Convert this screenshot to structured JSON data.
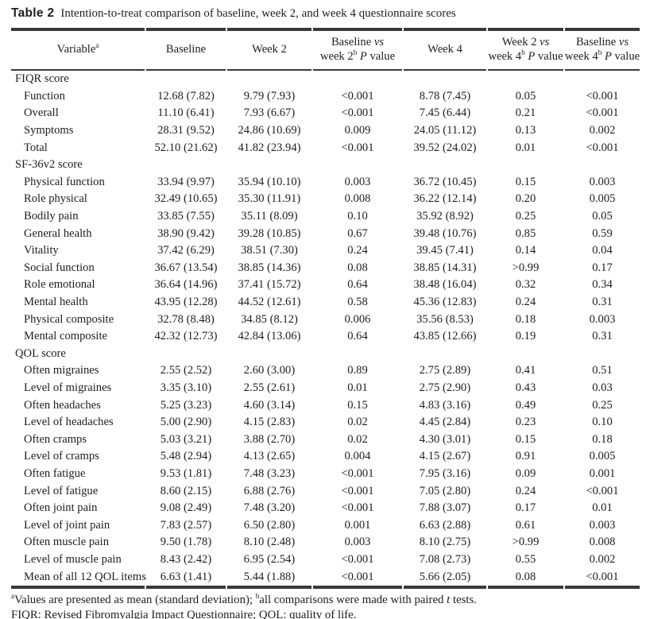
{
  "page": {
    "background_color": "#ffffff",
    "text_color": "#1e1e1e",
    "rule_color": "#3a3a3a"
  },
  "caption": {
    "label": "Table 2",
    "text": "Intention-to-treat comparison of baseline, week 2, and week 4 questionnaire scores"
  },
  "table": {
    "headers": [
      {
        "segments": [
          {
            "t": "Variable"
          },
          {
            "t": "a",
            "s": "sup"
          }
        ]
      },
      {
        "segments": [
          {
            "t": "Baseline"
          }
        ]
      },
      {
        "segments": [
          {
            "t": "Week 2"
          }
        ]
      },
      {
        "segments": [
          {
            "t": "Baseline "
          },
          {
            "t": "vs",
            "s": "i"
          },
          {
            "s": "br"
          },
          {
            "t": "week 2"
          },
          {
            "t": "b",
            "s": "sup"
          },
          {
            "t": " "
          },
          {
            "t": "P",
            "s": "i"
          },
          {
            "t": " value"
          }
        ]
      },
      {
        "segments": [
          {
            "t": "Week 4"
          }
        ]
      },
      {
        "segments": [
          {
            "t": "Week 2 "
          },
          {
            "t": "vs",
            "s": "i"
          },
          {
            "s": "br"
          },
          {
            "t": "week 4"
          },
          {
            "t": "b",
            "s": "sup"
          },
          {
            "t": " "
          },
          {
            "t": "P",
            "s": "i"
          },
          {
            "t": " value"
          }
        ]
      },
      {
        "segments": [
          {
            "t": "Baseline "
          },
          {
            "t": "vs",
            "s": "i"
          },
          {
            "s": "br"
          },
          {
            "t": "week 4"
          },
          {
            "t": "b",
            "s": "sup"
          },
          {
            "t": " "
          },
          {
            "t": "P",
            "s": "i"
          },
          {
            "t": " value"
          }
        ]
      }
    ],
    "rows": [
      {
        "section": "FIQR score"
      },
      {
        "label": "Function",
        "cells": [
          "12.68 (7.82)",
          "9.79 (7.93)",
          "<0.001",
          "8.78 (7.45)",
          "0.05",
          "<0.001"
        ]
      },
      {
        "label": "Overall",
        "cells": [
          "11.10 (6.41)",
          "7.93 (6.67)",
          "<0.001",
          "7.45 (6.44)",
          "0.21",
          "<0.001"
        ]
      },
      {
        "label": "Symptoms",
        "cells": [
          "28.31 (9.52)",
          "24.86 (10.69)",
          "0.009",
          "24.05 (11.12)",
          "0.13",
          "0.002"
        ]
      },
      {
        "label": "Total",
        "cells": [
          "52.10 (21.62)",
          "41.82 (23.94)",
          "<0.001",
          "39.52 (24.02)",
          "0.01",
          "<0.001"
        ]
      },
      {
        "section": "SF-36v2 score"
      },
      {
        "label": "Physical function",
        "cells": [
          "33.94 (9.97)",
          "35.94 (10.10)",
          "0.003",
          "36.72 (10.45)",
          "0.15",
          "0.003"
        ]
      },
      {
        "label": "Role physical",
        "cells": [
          "32.49 (10.65)",
          "35.30 (11.91)",
          "0.008",
          "36.22 (12.14)",
          "0.20",
          "0.005"
        ]
      },
      {
        "label": "Bodily pain",
        "cells": [
          "33.85 (7.55)",
          "35.11 (8.09)",
          "0.10",
          "35.92 (8.92)",
          "0.25",
          "0.05"
        ]
      },
      {
        "label": "General health",
        "cells": [
          "38.90 (9.42)",
          "39.28 (10.85)",
          "0.67",
          "39.48 (10.76)",
          "0.85",
          "0.59"
        ]
      },
      {
        "label": "Vitality",
        "cells": [
          "37.42 (6.29)",
          "38.51 (7.30)",
          "0.24",
          "39.45 (7.41)",
          "0.14",
          "0.04"
        ]
      },
      {
        "label": "Social function",
        "cells": [
          "36.67 (13.54)",
          "38.85 (14.36)",
          "0.08",
          "38.85 (14.31)",
          ">0.99",
          "0.17"
        ]
      },
      {
        "label": "Role emotional",
        "cells": [
          "36.64 (14.96)",
          "37.41 (15.72)",
          "0.64",
          "38.48 (16.04)",
          "0.32",
          "0.34"
        ]
      },
      {
        "label": "Mental health",
        "cells": [
          "43.95 (12.28)",
          "44.52 (12.61)",
          "0.58",
          "45.36 (12.83)",
          "0.24",
          "0.31"
        ]
      },
      {
        "label": "Physical composite",
        "cells": [
          "32.78 (8.48)",
          "34.85 (8.12)",
          "0.006",
          "35.56 (8.53)",
          "0.18",
          "0.003"
        ]
      },
      {
        "label": "Mental composite",
        "cells": [
          "42.32 (12.73)",
          "42.84 (13.06)",
          "0.64",
          "43.85 (12.66)",
          "0.19",
          "0.31"
        ]
      },
      {
        "section": "QOL score"
      },
      {
        "label": "Often migraines",
        "cells": [
          "2.55 (2.52)",
          "2.60 (3.00)",
          "0.89",
          "2.75 (2.89)",
          "0.41",
          "0.51"
        ]
      },
      {
        "label": "Level of migraines",
        "cells": [
          "3.35 (3.10)",
          "2.55 (2.61)",
          "0.01",
          "2.75 (2.90)",
          "0.43",
          "0.03"
        ]
      },
      {
        "label": "Often headaches",
        "cells": [
          "5.25 (3.23)",
          "4.60 (3.14)",
          "0.15",
          "4.83 (3.16)",
          "0.49",
          "0.25"
        ]
      },
      {
        "label": "Level of headaches",
        "cells": [
          "5.00 (2.90)",
          "4.15 (2.83)",
          "0.02",
          "4.45 (2.84)",
          "0.23",
          "0.10"
        ]
      },
      {
        "label": "Often cramps",
        "cells": [
          "5.03 (3.21)",
          "3.88 (2.70)",
          "0.02",
          "4.30 (3.01)",
          "0.15",
          "0.18"
        ]
      },
      {
        "label": "Level of cramps",
        "cells": [
          "5.48 (2.94)",
          "4.13 (2.65)",
          "0.004",
          "4.15 (2.67)",
          "0.91",
          "0.005"
        ]
      },
      {
        "label": "Often fatigue",
        "cells": [
          "9.53 (1.81)",
          "7.48 (3.23)",
          "<0.001",
          "7.95 (3.16)",
          "0.09",
          "0.001"
        ]
      },
      {
        "label": "Level of fatigue",
        "cells": [
          "8.60 (2.15)",
          "6.88 (2.76)",
          "<0.001",
          "7.05 (2.80)",
          "0.24",
          "<0.001"
        ]
      },
      {
        "label": "Often joint pain",
        "cells": [
          "9.08 (2.49)",
          "7.48 (3.20)",
          "<0.001",
          "7.88 (3.07)",
          "0.17",
          "0.01"
        ]
      },
      {
        "label": "Level of joint pain",
        "cells": [
          "7.83 (2.57)",
          "6.50 (2.80)",
          "0.001",
          "6.63 (2.88)",
          "0.61",
          "0.003"
        ]
      },
      {
        "label": "Often muscle pain",
        "cells": [
          "9.50 (1.78)",
          "8.10 (2.48)",
          "0.003",
          "8.10 (2.75)",
          ">0.99",
          "0.008"
        ]
      },
      {
        "label": "Level of muscle pain",
        "cells": [
          "8.43 (2.42)",
          "6.95 (2.54)",
          "<0.001",
          "7.08 (2.73)",
          "0.55",
          "0.002"
        ]
      },
      {
        "label": "Mean of all 12 QOL items",
        "cells": [
          "6.63 (1.41)",
          "5.44 (1.88)",
          "<0.001",
          "5.66 (2.05)",
          "0.08",
          "<0.001"
        ]
      }
    ]
  },
  "footnotes": [
    {
      "segments": [
        {
          "t": "a",
          "s": "sup"
        },
        {
          "t": "Values are presented as mean (standard deviation); "
        },
        {
          "t": "b",
          "s": "sup"
        },
        {
          "t": "all comparisons were made with paired "
        },
        {
          "t": "t",
          "s": "i"
        },
        {
          "t": " tests."
        }
      ]
    },
    {
      "segments": [
        {
          "t": "FIQR: Revised Fibromyalgia Impact Questionnaire; QOL: quality of life."
        }
      ]
    }
  ]
}
